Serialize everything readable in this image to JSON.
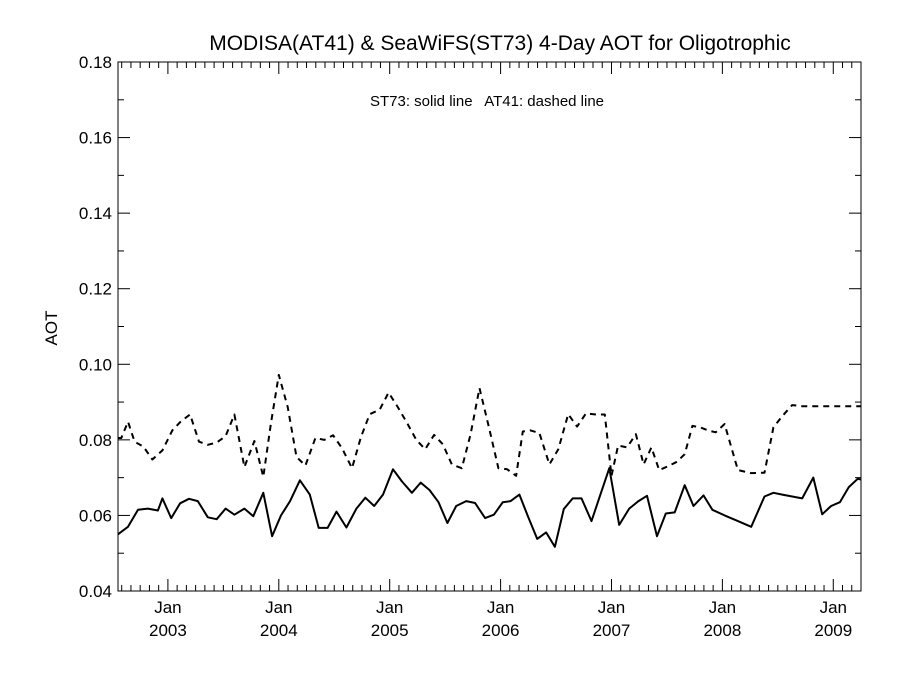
{
  "chart_data": {
    "type": "line",
    "title": "MODISA(AT41) & SeaWiFS(ST73) 4-Day AOT for Oligotrophic",
    "annotation": "ST73: solid line   AT41: dashed line",
    "ylabel": "AOT",
    "xlabel": "",
    "ylim": [
      0.04,
      0.18
    ],
    "xlim": [
      2002.55,
      2009.25
    ],
    "yticks": [
      "0.04",
      "0.06",
      "0.08",
      "0.10",
      "0.12",
      "0.14",
      "0.16",
      "0.18"
    ],
    "xticks": [
      {
        "month": "Jan",
        "year": "2003"
      },
      {
        "month": "Jan",
        "year": "2004"
      },
      {
        "month": "Jan",
        "year": "2005"
      },
      {
        "month": "Jan",
        "year": "2006"
      },
      {
        "month": "Jan",
        "year": "2007"
      },
      {
        "month": "Jan",
        "year": "2008"
      },
      {
        "month": "Jan",
        "year": "2009"
      }
    ],
    "grid": false,
    "series": [
      {
        "name": "ST73",
        "style": "solid",
        "x": [
          2002.55,
          2002.64,
          2002.73,
          2002.82,
          2002.91,
          2002.95,
          2003.03,
          2003.11,
          2003.19,
          2003.27,
          2003.36,
          2003.44,
          2003.52,
          2003.6,
          2003.69,
          2003.77,
          2003.86,
          2003.94,
          2004.02,
          2004.1,
          2004.19,
          2004.28,
          2004.36,
          2004.44,
          2004.52,
          2004.61,
          2004.7,
          2004.78,
          2004.86,
          2004.94,
          2005.03,
          2005.11,
          2005.2,
          2005.28,
          2005.36,
          2005.44,
          2005.52,
          2005.6,
          2005.69,
          2005.77,
          2005.86,
          2005.94,
          2006.02,
          2006.09,
          2006.17,
          2006.25,
          2006.33,
          2006.41,
          2006.49,
          2006.57,
          2006.65,
          2006.73,
          2006.82,
          2006.9,
          2006.98,
          2007.07,
          2007.16,
          2007.24,
          2007.32,
          2007.41,
          2007.49,
          2007.57,
          2007.66,
          2007.74,
          2007.83,
          2007.91,
          2008.02,
          2008.14,
          2008.26,
          2008.38,
          2008.46,
          2008.54,
          2008.63,
          2008.72,
          2008.82,
          2008.9,
          2008.98,
          2009.06,
          2009.14,
          2009.22,
          2009.25
        ],
        "values": [
          0.055,
          0.057,
          0.0615,
          0.0618,
          0.0613,
          0.0645,
          0.0593,
          0.0632,
          0.0644,
          0.0638,
          0.0595,
          0.059,
          0.0618,
          0.0602,
          0.0618,
          0.0598,
          0.066,
          0.0545,
          0.06,
          0.0637,
          0.0693,
          0.0655,
          0.0567,
          0.0567,
          0.061,
          0.0568,
          0.0618,
          0.0647,
          0.0625,
          0.0655,
          0.0722,
          0.069,
          0.066,
          0.0687,
          0.0667,
          0.0635,
          0.058,
          0.0625,
          0.0638,
          0.0633,
          0.0593,
          0.0602,
          0.0635,
          0.0638,
          0.0655,
          0.0595,
          0.0538,
          0.0555,
          0.0517,
          0.0617,
          0.0645,
          0.0645,
          0.0585,
          0.0655,
          0.0725,
          0.0575,
          0.0618,
          0.0637,
          0.0652,
          0.0545,
          0.0605,
          0.0608,
          0.068,
          0.0625,
          0.0653,
          0.0615,
          0.06,
          0.0585,
          0.057,
          0.065,
          0.066,
          0.0655,
          0.065,
          0.0645,
          0.07,
          0.0603,
          0.0625,
          0.0635,
          0.0675,
          0.0697,
          0.0695
        ]
      },
      {
        "name": "AT41",
        "style": "dashed",
        "x": [
          2002.55,
          2002.58,
          2002.64,
          2002.7,
          2002.78,
          2002.86,
          2002.95,
          2003.04,
          2003.12,
          2003.2,
          2003.28,
          2003.36,
          2003.44,
          2003.52,
          2003.6,
          2003.69,
          2003.78,
          2003.86,
          2003.93,
          2004.0,
          2004.08,
          2004.16,
          2004.24,
          2004.33,
          2004.41,
          2004.49,
          2004.57,
          2004.66,
          2004.74,
          2004.82,
          2004.91,
          2004.99,
          2005.07,
          2005.16,
          2005.24,
          2005.32,
          2005.4,
          2005.48,
          2005.56,
          2005.65,
          2005.73,
          2005.81,
          2005.9,
          2005.98,
          2006.06,
          2006.14,
          2006.2,
          2006.27,
          2006.35,
          2006.44,
          2006.52,
          2006.61,
          2006.69,
          2006.77,
          2006.86,
          2006.94,
          2007.0,
          2007.06,
          2007.14,
          2007.22,
          2007.29,
          2007.36,
          2007.43,
          2007.51,
          2007.59,
          2007.66,
          2007.73,
          2007.8,
          2007.87,
          2007.94,
          2008.02,
          2008.14,
          2008.26,
          2008.38,
          2008.46,
          2008.54,
          2008.63,
          2008.72,
          2008.82,
          2008.88,
          2008.95,
          2009.02,
          2009.1,
          2009.18,
          2009.25
        ],
        "values": [
          0.0805,
          0.0805,
          0.0848,
          0.0795,
          0.0782,
          0.0748,
          0.0772,
          0.0825,
          0.085,
          0.0867,
          0.0795,
          0.0787,
          0.0793,
          0.081,
          0.0867,
          0.0728,
          0.0797,
          0.0702,
          0.0845,
          0.0972,
          0.0887,
          0.0755,
          0.0732,
          0.0805,
          0.08,
          0.0812,
          0.0778,
          0.0725,
          0.0807,
          0.0868,
          0.088,
          0.0925,
          0.0888,
          0.0843,
          0.08,
          0.0775,
          0.0813,
          0.0788,
          0.0735,
          0.0725,
          0.0815,
          0.0937,
          0.0827,
          0.0725,
          0.0722,
          0.0705,
          0.0822,
          0.0825,
          0.0818,
          0.0735,
          0.0775,
          0.0868,
          0.0835,
          0.087,
          0.0867,
          0.0867,
          0.0705,
          0.0785,
          0.078,
          0.0815,
          0.0735,
          0.078,
          0.072,
          0.073,
          0.0742,
          0.0762,
          0.0837,
          0.0833,
          0.0825,
          0.082,
          0.0842,
          0.072,
          0.0712,
          0.0713,
          0.0833,
          0.0863,
          0.0892,
          0.0889,
          0.0889,
          0.0889,
          0.0889,
          0.0889,
          0.0889,
          0.0889,
          0.0889
        ]
      }
    ]
  }
}
